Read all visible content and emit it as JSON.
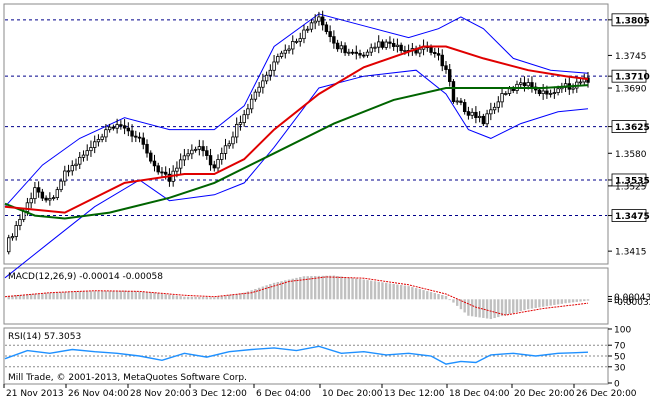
{
  "chart_data": {
    "type": "candlestick",
    "symbol_note": "",
    "copyright": "Mill Trade, © 2001-2013, MetaQuotes Software Corp.",
    "price_axis": {
      "ylim": [
        1.3395,
        1.383
      ],
      "ticks": [
        1.3805,
        1.3745,
        1.371,
        1.369,
        1.3625,
        1.358,
        1.3535,
        1.3525,
        1.3475,
        1.3415
      ]
    },
    "levels": [
      {
        "value": 1.3805,
        "label": "1.3805"
      },
      {
        "value": 1.371,
        "label": "1.3710"
      },
      {
        "value": 1.3625,
        "label": "1.3625"
      },
      {
        "value": 1.3535,
        "label": "1.3535"
      },
      {
        "value": 1.3475,
        "label": "1.3475"
      }
    ],
    "time_labels": [
      "21 Nov 2013",
      "26 Nov 04:00",
      "28 Nov 20:00",
      "3 Dec 12:00",
      "6 Dec 04:00",
      "10 Dec 20:00",
      "13 Dec 12:00",
      "18 Dec 04:00",
      "20 Dec 20:00",
      "26 Dec 20:00"
    ],
    "price_path": [
      [
        0,
        1.342
      ],
      [
        4,
        1.347
      ],
      [
        8,
        1.352
      ],
      [
        12,
        1.35
      ],
      [
        16,
        1.3545
      ],
      [
        20,
        1.357
      ],
      [
        24,
        1.3595
      ],
      [
        28,
        1.362
      ],
      [
        32,
        1.3625
      ],
      [
        36,
        1.36
      ],
      [
        40,
        1.356
      ],
      [
        44,
        1.3535
      ],
      [
        48,
        1.358
      ],
      [
        52,
        1.3595
      ],
      [
        56,
        1.3555
      ],
      [
        60,
        1.36
      ],
      [
        64,
        1.365
      ],
      [
        68,
        1.369
      ],
      [
        72,
        1.373
      ],
      [
        76,
        1.376
      ],
      [
        80,
        1.3785
      ],
      [
        84,
        1.3805
      ],
      [
        88,
        1.3765
      ],
      [
        92,
        1.375
      ],
      [
        96,
        1.374
      ],
      [
        100,
        1.3765
      ],
      [
        104,
        1.376
      ],
      [
        108,
        1.375
      ],
      [
        112,
        1.3755
      ],
      [
        116,
        1.3745
      ],
      [
        118,
        1.372
      ],
      [
        120,
        1.367
      ],
      [
        124,
        1.365
      ],
      [
        128,
        1.3635
      ],
      [
        132,
        1.367
      ],
      [
        136,
        1.369
      ],
      [
        140,
        1.37
      ],
      [
        144,
        1.368
      ],
      [
        148,
        1.369
      ],
      [
        152,
        1.3695
      ],
      [
        156,
        1.3705
      ]
    ],
    "ma_fast": [
      [
        0,
        1.349
      ],
      [
        16,
        1.348
      ],
      [
        32,
        1.353
      ],
      [
        48,
        1.3545
      ],
      [
        56,
        1.3545
      ],
      [
        64,
        1.357
      ],
      [
        72,
        1.362
      ],
      [
        84,
        1.368
      ],
      [
        96,
        1.3725
      ],
      [
        112,
        1.376
      ],
      [
        118,
        1.376
      ],
      [
        128,
        1.374
      ],
      [
        140,
        1.372
      ],
      [
        150,
        1.371
      ],
      [
        156,
        1.3705
      ]
    ],
    "ma_slow": [
      [
        0,
        1.3495
      ],
      [
        8,
        1.3475
      ],
      [
        16,
        1.347
      ],
      [
        28,
        1.348
      ],
      [
        44,
        1.3505
      ],
      [
        56,
        1.353
      ],
      [
        72,
        1.358
      ],
      [
        88,
        1.363
      ],
      [
        104,
        1.367
      ],
      [
        118,
        1.369
      ],
      [
        130,
        1.369
      ],
      [
        144,
        1.369
      ],
      [
        156,
        1.3695
      ]
    ],
    "bb_upper": [
      [
        0,
        1.349
      ],
      [
        10,
        1.356
      ],
      [
        20,
        1.3605
      ],
      [
        32,
        1.364
      ],
      [
        44,
        1.362
      ],
      [
        56,
        1.362
      ],
      [
        64,
        1.366
      ],
      [
        72,
        1.376
      ],
      [
        84,
        1.3815
      ],
      [
        96,
        1.3795
      ],
      [
        108,
        1.3775
      ],
      [
        116,
        1.379
      ],
      [
        122,
        1.381
      ],
      [
        128,
        1.379
      ],
      [
        136,
        1.374
      ],
      [
        146,
        1.372
      ],
      [
        156,
        1.3715
      ]
    ],
    "bb_lower": [
      [
        0,
        1.337
      ],
      [
        12,
        1.343
      ],
      [
        24,
        1.349
      ],
      [
        36,
        1.3535
      ],
      [
        44,
        1.35
      ],
      [
        56,
        1.351
      ],
      [
        64,
        1.353
      ],
      [
        72,
        1.359
      ],
      [
        84,
        1.369
      ],
      [
        96,
        1.371
      ],
      [
        110,
        1.372
      ],
      [
        118,
        1.368
      ],
      [
        124,
        1.362
      ],
      [
        130,
        1.3605
      ],
      [
        138,
        1.363
      ],
      [
        148,
        1.365
      ],
      [
        156,
        1.3655
      ]
    ],
    "macd": {
      "label": "MACD(12,26,9) -0.00014 -0.00058",
      "ylim": [
        -0.0036,
        0.0046
      ],
      "ticks": [
        0.00043,
        0.0,
        -0.00032
      ],
      "tick_labels": [
        "0.00043",
        "0.00",
        "-0.00032"
      ],
      "histogram": [
        [
          0,
          0.0005
        ],
        [
          10,
          0.0009
        ],
        [
          20,
          0.0012
        ],
        [
          32,
          0.0013
        ],
        [
          40,
          0.001
        ],
        [
          48,
          0.0004
        ],
        [
          56,
          0.0003
        ],
        [
          64,
          0.001
        ],
        [
          72,
          0.0025
        ],
        [
          80,
          0.0035
        ],
        [
          88,
          0.0036
        ],
        [
          96,
          0.003
        ],
        [
          108,
          0.002
        ],
        [
          118,
          0.0005
        ],
        [
          124,
          -0.0025
        ],
        [
          130,
          -0.003
        ],
        [
          140,
          -0.0015
        ],
        [
          150,
          -0.0006
        ],
        [
          156,
          -0.0002
        ]
      ],
      "signal": [
        [
          0,
          0.0004
        ],
        [
          12,
          0.001
        ],
        [
          24,
          0.0013
        ],
        [
          36,
          0.0012
        ],
        [
          48,
          0.0006
        ],
        [
          56,
          0.0004
        ],
        [
          66,
          0.001
        ],
        [
          76,
          0.0027
        ],
        [
          86,
          0.0034
        ],
        [
          96,
          0.0032
        ],
        [
          108,
          0.0022
        ],
        [
          118,
          0.0008
        ],
        [
          126,
          -0.0012
        ],
        [
          134,
          -0.0024
        ],
        [
          144,
          -0.0014
        ],
        [
          156,
          -0.0006
        ]
      ]
    },
    "rsi": {
      "label": "RSI(14) 57.3053",
      "ylim": [
        0,
        100
      ],
      "ticks": [
        100,
        70,
        50,
        30,
        0
      ],
      "path": [
        [
          0,
          45
        ],
        [
          6,
          60
        ],
        [
          12,
          55
        ],
        [
          18,
          62
        ],
        [
          24,
          58
        ],
        [
          30,
          55
        ],
        [
          36,
          50
        ],
        [
          42,
          42
        ],
        [
          48,
          55
        ],
        [
          54,
          48
        ],
        [
          60,
          58
        ],
        [
          66,
          62
        ],
        [
          72,
          65
        ],
        [
          78,
          60
        ],
        [
          84,
          68
        ],
        [
          90,
          55
        ],
        [
          96,
          58
        ],
        [
          102,
          52
        ],
        [
          108,
          55
        ],
        [
          114,
          50
        ],
        [
          118,
          35
        ],
        [
          122,
          40
        ],
        [
          126,
          38
        ],
        [
          130,
          52
        ],
        [
          136,
          55
        ],
        [
          142,
          50
        ],
        [
          148,
          55
        ],
        [
          152,
          56
        ],
        [
          156,
          57
        ]
      ]
    }
  },
  "colors": {
    "candle": "#000000",
    "ma_fast": "#e00000",
    "ma_slow": "#006400",
    "bands": "#0000ff",
    "level_line": "#00008b",
    "hist": "#c0c0c0",
    "signal": "#e00000",
    "rsi": "#1e90ff"
  }
}
